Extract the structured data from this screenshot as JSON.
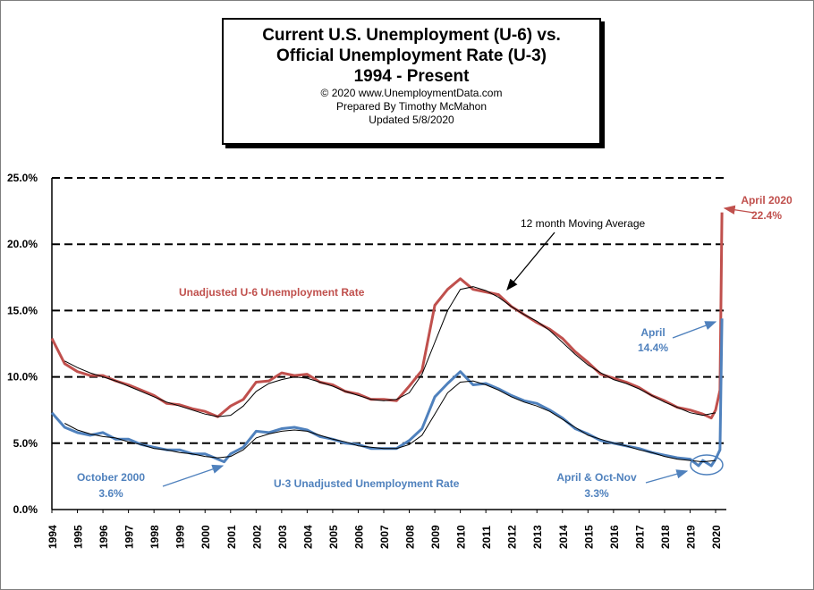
{
  "title": {
    "line1": "Current U.S. Unemployment (U-6) vs.",
    "line2": "Official Unemployment Rate (U-3)",
    "line3": "1994 - Present",
    "copyright": "© 2020  www.UnemploymentData.com",
    "prepared": "Prepared  By Timothy  McMahon",
    "updated": "Updated  5/8/2020"
  },
  "chart_data": {
    "type": "line",
    "title": "Current U.S. Unemployment (U-6) vs. Official Unemployment Rate (U-3) 1994 - Present",
    "xlabel": "",
    "ylabel": "",
    "ylim": [
      0,
      25
    ],
    "xlim": [
      1994,
      2020.42
    ],
    "y_ticks": [
      "0.0%",
      "5.0%",
      "10.0%",
      "15.0%",
      "20.0%",
      "25.0%"
    ],
    "x_ticks": [
      "1994",
      "1995",
      "1996",
      "1997",
      "1998",
      "1999",
      "2000",
      "2001",
      "2002",
      "2003",
      "2004",
      "2005",
      "2006",
      "2007",
      "2008",
      "2009",
      "2010",
      "2011",
      "2012",
      "2013",
      "2014",
      "2015",
      "2016",
      "2017",
      "2018",
      "2019",
      "2020"
    ],
    "grid": "horizontal dashed",
    "series": [
      {
        "name": "Unadjusted U-6 Unemployment Rate",
        "color": "#c0504d",
        "points": [
          [
            1994.0,
            12.9
          ],
          [
            1994.5,
            11.0
          ],
          [
            1995.0,
            10.4
          ],
          [
            1995.5,
            10.1
          ],
          [
            1996.0,
            10.1
          ],
          [
            1996.5,
            9.7
          ],
          [
            1997.0,
            9.4
          ],
          [
            1997.5,
            9.0
          ],
          [
            1998.0,
            8.6
          ],
          [
            1998.5,
            8.0
          ],
          [
            1999.0,
            7.9
          ],
          [
            1999.5,
            7.6
          ],
          [
            2000.0,
            7.4
          ],
          [
            2000.5,
            7.0
          ],
          [
            2001.0,
            7.8
          ],
          [
            2001.5,
            8.3
          ],
          [
            2002.0,
            9.6
          ],
          [
            2002.5,
            9.7
          ],
          [
            2003.0,
            10.3
          ],
          [
            2003.5,
            10.1
          ],
          [
            2004.0,
            10.2
          ],
          [
            2004.5,
            9.6
          ],
          [
            2005.0,
            9.4
          ],
          [
            2005.5,
            8.9
          ],
          [
            2006.0,
            8.7
          ],
          [
            2006.5,
            8.3
          ],
          [
            2007.0,
            8.3
          ],
          [
            2007.5,
            8.2
          ],
          [
            2008.0,
            9.3
          ],
          [
            2008.5,
            10.5
          ],
          [
            2009.0,
            15.4
          ],
          [
            2009.5,
            16.6
          ],
          [
            2010.0,
            17.4
          ],
          [
            2010.5,
            16.6
          ],
          [
            2011.0,
            16.4
          ],
          [
            2011.5,
            16.2
          ],
          [
            2012.0,
            15.3
          ],
          [
            2012.5,
            14.7
          ],
          [
            2013.0,
            14.1
          ],
          [
            2013.5,
            13.6
          ],
          [
            2014.0,
            12.9
          ],
          [
            2014.5,
            11.9
          ],
          [
            2015.0,
            11.1
          ],
          [
            2015.5,
            10.2
          ],
          [
            2016.0,
            9.9
          ],
          [
            2016.5,
            9.6
          ],
          [
            2017.0,
            9.2
          ],
          [
            2017.5,
            8.6
          ],
          [
            2018.0,
            8.2
          ],
          [
            2018.5,
            7.7
          ],
          [
            2019.0,
            7.5
          ],
          [
            2019.5,
            7.2
          ],
          [
            2019.83,
            6.9
          ],
          [
            2020.0,
            7.5
          ],
          [
            2020.17,
            9.0
          ],
          [
            2020.25,
            22.4
          ]
        ],
        "moving_average": [
          [
            1994.5,
            11.2
          ],
          [
            1995.0,
            10.7
          ],
          [
            1995.5,
            10.3
          ],
          [
            1996.0,
            10.0
          ],
          [
            1996.5,
            9.7
          ],
          [
            1997.0,
            9.3
          ],
          [
            1997.5,
            8.9
          ],
          [
            1998.0,
            8.5
          ],
          [
            1998.5,
            8.1
          ],
          [
            1999.0,
            7.8
          ],
          [
            1999.5,
            7.5
          ],
          [
            2000.0,
            7.2
          ],
          [
            2000.5,
            7.0
          ],
          [
            2001.0,
            7.1
          ],
          [
            2001.5,
            7.8
          ],
          [
            2002.0,
            8.9
          ],
          [
            2002.5,
            9.5
          ],
          [
            2003.0,
            9.8
          ],
          [
            2003.5,
            10.0
          ],
          [
            2004.0,
            9.9
          ],
          [
            2004.5,
            9.6
          ],
          [
            2005.0,
            9.3
          ],
          [
            2005.5,
            8.9
          ],
          [
            2006.0,
            8.6
          ],
          [
            2006.5,
            8.3
          ],
          [
            2007.0,
            8.2
          ],
          [
            2007.5,
            8.3
          ],
          [
            2008.0,
            8.8
          ],
          [
            2008.5,
            10.2
          ],
          [
            2009.0,
            12.6
          ],
          [
            2009.5,
            15.0
          ],
          [
            2010.0,
            16.6
          ],
          [
            2010.5,
            16.8
          ],
          [
            2011.0,
            16.5
          ],
          [
            2011.5,
            16.0
          ],
          [
            2012.0,
            15.3
          ],
          [
            2012.5,
            14.7
          ],
          [
            2013.0,
            14.2
          ],
          [
            2013.5,
            13.5
          ],
          [
            2014.0,
            12.6
          ],
          [
            2014.5,
            11.7
          ],
          [
            2015.0,
            10.9
          ],
          [
            2015.5,
            10.3
          ],
          [
            2016.0,
            9.8
          ],
          [
            2016.5,
            9.5
          ],
          [
            2017.0,
            9.1
          ],
          [
            2017.5,
            8.6
          ],
          [
            2018.0,
            8.1
          ],
          [
            2018.5,
            7.7
          ],
          [
            2019.0,
            7.3
          ],
          [
            2019.5,
            7.1
          ],
          [
            2020.0,
            7.3
          ]
        ]
      },
      {
        "name": "U-3  Unadjusted Unemployment Rate",
        "color": "#4f81bd",
        "points": [
          [
            1994.0,
            7.3
          ],
          [
            1994.5,
            6.2
          ],
          [
            1995.0,
            5.8
          ],
          [
            1995.5,
            5.6
          ],
          [
            1996.0,
            5.8
          ],
          [
            1996.5,
            5.3
          ],
          [
            1997.0,
            5.3
          ],
          [
            1997.5,
            4.9
          ],
          [
            1998.0,
            4.7
          ],
          [
            1998.5,
            4.5
          ],
          [
            1999.0,
            4.5
          ],
          [
            1999.5,
            4.2
          ],
          [
            2000.0,
            4.2
          ],
          [
            2000.75,
            3.6
          ],
          [
            2001.0,
            4.2
          ],
          [
            2001.5,
            4.7
          ],
          [
            2002.0,
            5.9
          ],
          [
            2002.5,
            5.8
          ],
          [
            2003.0,
            6.1
          ],
          [
            2003.5,
            6.2
          ],
          [
            2004.0,
            6.0
          ],
          [
            2004.5,
            5.5
          ],
          [
            2005.0,
            5.3
          ],
          [
            2005.5,
            5.0
          ],
          [
            2006.0,
            4.9
          ],
          [
            2006.5,
            4.6
          ],
          [
            2007.0,
            4.6
          ],
          [
            2007.5,
            4.6
          ],
          [
            2008.0,
            5.2
          ],
          [
            2008.5,
            6.1
          ],
          [
            2009.0,
            8.5
          ],
          [
            2009.5,
            9.5
          ],
          [
            2010.0,
            10.4
          ],
          [
            2010.5,
            9.4
          ],
          [
            2011.0,
            9.5
          ],
          [
            2011.5,
            9.1
          ],
          [
            2012.0,
            8.6
          ],
          [
            2012.5,
            8.2
          ],
          [
            2013.0,
            8.0
          ],
          [
            2013.5,
            7.5
          ],
          [
            2014.0,
            6.9
          ],
          [
            2014.5,
            6.1
          ],
          [
            2015.0,
            5.7
          ],
          [
            2015.5,
            5.2
          ],
          [
            2016.0,
            5.0
          ],
          [
            2016.5,
            4.8
          ],
          [
            2017.0,
            4.6
          ],
          [
            2017.5,
            4.3
          ],
          [
            2018.0,
            4.1
          ],
          [
            2018.5,
            3.9
          ],
          [
            2019.0,
            3.8
          ],
          [
            2019.33,
            3.3
          ],
          [
            2019.5,
            3.7
          ],
          [
            2019.83,
            3.3
          ],
          [
            2020.0,
            3.8
          ],
          [
            2020.17,
            4.5
          ],
          [
            2020.25,
            14.4
          ]
        ],
        "moving_average": [
          [
            1994.5,
            6.5
          ],
          [
            1995.0,
            6.0
          ],
          [
            1995.5,
            5.7
          ],
          [
            1996.0,
            5.5
          ],
          [
            1996.5,
            5.4
          ],
          [
            1997.0,
            5.1
          ],
          [
            1997.5,
            4.9
          ],
          [
            1998.0,
            4.6
          ],
          [
            1998.5,
            4.5
          ],
          [
            1999.0,
            4.3
          ],
          [
            1999.5,
            4.2
          ],
          [
            2000.0,
            4.0
          ],
          [
            2000.5,
            3.9
          ],
          [
            2001.0,
            4.0
          ],
          [
            2001.5,
            4.5
          ],
          [
            2002.0,
            5.4
          ],
          [
            2002.5,
            5.7
          ],
          [
            2003.0,
            5.9
          ],
          [
            2003.5,
            6.0
          ],
          [
            2004.0,
            5.9
          ],
          [
            2004.5,
            5.6
          ],
          [
            2005.0,
            5.3
          ],
          [
            2005.5,
            5.1
          ],
          [
            2006.0,
            4.8
          ],
          [
            2006.5,
            4.7
          ],
          [
            2007.0,
            4.6
          ],
          [
            2007.5,
            4.6
          ],
          [
            2008.0,
            4.9
          ],
          [
            2008.5,
            5.6
          ],
          [
            2009.0,
            7.2
          ],
          [
            2009.5,
            8.8
          ],
          [
            2010.0,
            9.6
          ],
          [
            2010.5,
            9.7
          ],
          [
            2011.0,
            9.4
          ],
          [
            2011.5,
            9.0
          ],
          [
            2012.0,
            8.5
          ],
          [
            2012.5,
            8.1
          ],
          [
            2013.0,
            7.8
          ],
          [
            2013.5,
            7.4
          ],
          [
            2014.0,
            6.8
          ],
          [
            2014.5,
            6.2
          ],
          [
            2015.0,
            5.6
          ],
          [
            2015.5,
            5.3
          ],
          [
            2016.0,
            5.0
          ],
          [
            2016.5,
            4.8
          ],
          [
            2017.0,
            4.5
          ],
          [
            2017.5,
            4.3
          ],
          [
            2018.0,
            4.0
          ],
          [
            2018.5,
            3.8
          ],
          [
            2019.0,
            3.7
          ],
          [
            2019.5,
            3.6
          ],
          [
            2020.0,
            3.7
          ]
        ]
      }
    ],
    "annotations": {
      "u6_label": "Unadjusted U-6 Unemployment Rate",
      "u3_label": "U-3  Unadjusted Unemployment Rate",
      "moving_average_label": "12 month Moving Average",
      "oct2000_label": "October 2000",
      "oct2000_value": "3.6%",
      "april2020_u6_label": "April 2020",
      "april2020_u6_value": "22.4%",
      "april_u3_label": "April",
      "april_u3_value": "14.4%",
      "april_octnov_label": "April & Oct-Nov",
      "april_octnov_value": "3.3%"
    }
  }
}
